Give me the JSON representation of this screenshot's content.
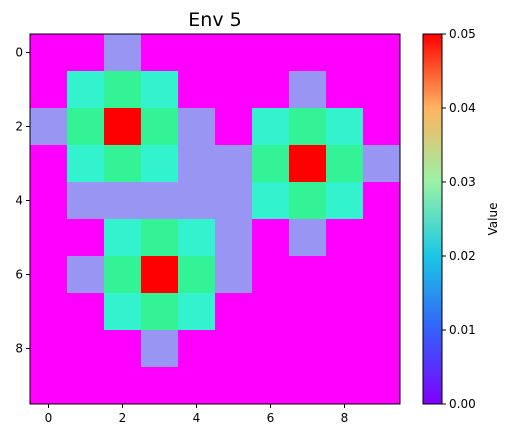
{
  "chart_data": {
    "type": "heatmap",
    "title": "Env 5",
    "xticks": [
      "0",
      "2",
      "4",
      "6",
      "8"
    ],
    "yticks": [
      "0",
      "2",
      "4",
      "6",
      "8"
    ],
    "colorbar": {
      "label": "Value",
      "ticks": [
        "0.00",
        "0.01",
        "0.02",
        "0.03",
        "0.04",
        "0.05"
      ],
      "vmin": 0,
      "vmax": 0.05,
      "colormap": "rainbow"
    },
    "matrix": [
      [
        0,
        0,
        0.01,
        0,
        0,
        0,
        0,
        0,
        0,
        0
      ],
      [
        0,
        0.02,
        0.03,
        0.02,
        0,
        0,
        0,
        0.01,
        0,
        0
      ],
      [
        0.01,
        0.03,
        0.05,
        0.03,
        0.01,
        0,
        0.02,
        0.03,
        0.02,
        0
      ],
      [
        0,
        0.02,
        0.03,
        0.02,
        0.01,
        0.01,
        0.03,
        0.05,
        0.03,
        0.01
      ],
      [
        0,
        0.01,
        0.01,
        0.01,
        0.01,
        0.01,
        0.02,
        0.03,
        0.02,
        0
      ],
      [
        0,
        0,
        0.02,
        0.03,
        0.02,
        0.01,
        0,
        0.01,
        0,
        0
      ],
      [
        0,
        0.01,
        0.03,
        0.05,
        0.03,
        0.01,
        0,
        0,
        0,
        0
      ],
      [
        0,
        0,
        0.02,
        0.03,
        0.02,
        0,
        0,
        0,
        0,
        0
      ],
      [
        0,
        0,
        0,
        0.01,
        0,
        0,
        0,
        0,
        0,
        0
      ],
      [
        0,
        0,
        0,
        0,
        0,
        0,
        0,
        0,
        0,
        0
      ]
    ]
  }
}
